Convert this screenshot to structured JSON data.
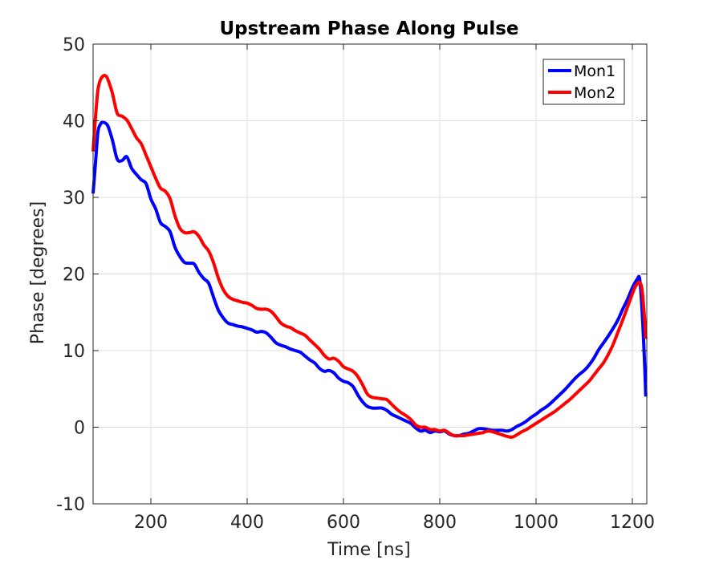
{
  "chart_data": {
    "type": "line",
    "title": "Upstream Phase Along Pulse",
    "xlabel": "Time [ns]",
    "ylabel": "Phase [degrees]",
    "xlim": [
      80,
      1230
    ],
    "ylim": [
      -10,
      50
    ],
    "xticks": [
      200,
      400,
      600,
      800,
      1000,
      1200
    ],
    "xtick_labels": [
      "200",
      "400",
      "600",
      "800",
      "1000",
      "1200"
    ],
    "yticks": [
      -10,
      0,
      10,
      20,
      30,
      40,
      50
    ],
    "ytick_labels": [
      "-10",
      "0",
      "10",
      "20",
      "30",
      "40",
      "50"
    ],
    "grid": true,
    "legend_position": "top-right",
    "series": [
      {
        "name": "Mon1",
        "color": "#0000ff",
        "x": [
          80,
          85,
          90,
          95,
          100,
          110,
          120,
          130,
          140,
          150,
          160,
          170,
          180,
          190,
          200,
          210,
          220,
          230,
          240,
          250,
          260,
          270,
          280,
          290,
          300,
          310,
          320,
          330,
          340,
          350,
          360,
          370,
          380,
          390,
          400,
          410,
          420,
          430,
          440,
          450,
          460,
          470,
          480,
          490,
          500,
          510,
          520,
          530,
          540,
          550,
          560,
          570,
          580,
          590,
          600,
          610,
          620,
          630,
          640,
          650,
          660,
          670,
          680,
          690,
          700,
          710,
          720,
          730,
          740,
          750,
          760,
          770,
          780,
          790,
          800,
          810,
          820,
          830,
          840,
          850,
          860,
          870,
          880,
          890,
          900,
          910,
          920,
          930,
          940,
          950,
          960,
          970,
          980,
          990,
          1000,
          1010,
          1020,
          1030,
          1040,
          1050,
          1060,
          1070,
          1080,
          1090,
          1100,
          1110,
          1120,
          1130,
          1140,
          1150,
          1160,
          1170,
          1180,
          1190,
          1200,
          1205,
          1210,
          1215,
          1220,
          1225,
          1228
        ],
        "y": [
          30.5,
          34.5,
          38.5,
          39.5,
          39.8,
          39.4,
          37.5,
          35.0,
          34.8,
          35.3,
          33.8,
          33.0,
          32.3,
          31.8,
          29.8,
          28.5,
          26.7,
          26.2,
          25.5,
          23.5,
          22.3,
          21.5,
          21.4,
          21.3,
          20.2,
          19.4,
          18.8,
          17.0,
          15.3,
          14.3,
          13.6,
          13.4,
          13.2,
          13.1,
          12.9,
          12.7,
          12.4,
          12.5,
          12.3,
          11.7,
          11.0,
          10.7,
          10.5,
          10.2,
          10.0,
          9.8,
          9.3,
          8.8,
          8.4,
          7.7,
          7.3,
          7.4,
          7.1,
          6.4,
          6.0,
          5.8,
          5.3,
          4.2,
          3.3,
          2.7,
          2.5,
          2.5,
          2.5,
          2.2,
          1.7,
          1.4,
          1.1,
          0.8,
          0.5,
          -0.1,
          -0.5,
          -0.4,
          -0.7,
          -0.5,
          -0.6,
          -0.5,
          -0.9,
          -1.1,
          -1.1,
          -0.9,
          -0.8,
          -0.5,
          -0.2,
          -0.2,
          -0.3,
          -0.4,
          -0.4,
          -0.4,
          -0.5,
          -0.3,
          0.1,
          0.4,
          0.8,
          1.3,
          1.7,
          2.2,
          2.6,
          3.1,
          3.7,
          4.3,
          4.9,
          5.6,
          6.3,
          6.9,
          7.4,
          8.1,
          9.0,
          10.1,
          11.0,
          11.9,
          12.9,
          14.0,
          15.4,
          16.7,
          18.2,
          18.8,
          19.3,
          19.4,
          15.5,
          9.0,
          4.0
        ]
      },
      {
        "name": "Mon2",
        "color": "#ff0000",
        "x": [
          80,
          85,
          90,
          95,
          100,
          105,
          110,
          120,
          130,
          140,
          150,
          160,
          170,
          180,
          190,
          200,
          210,
          220,
          230,
          240,
          250,
          260,
          270,
          280,
          290,
          300,
          310,
          320,
          330,
          340,
          350,
          360,
          370,
          380,
          390,
          400,
          410,
          420,
          430,
          440,
          450,
          460,
          470,
          480,
          490,
          500,
          510,
          520,
          530,
          540,
          550,
          560,
          570,
          580,
          590,
          600,
          610,
          620,
          630,
          640,
          650,
          660,
          670,
          680,
          690,
          700,
          710,
          720,
          730,
          740,
          750,
          760,
          770,
          780,
          790,
          800,
          810,
          820,
          830,
          840,
          850,
          860,
          870,
          880,
          890,
          900,
          910,
          920,
          930,
          940,
          950,
          960,
          970,
          980,
          990,
          1000,
          1010,
          1020,
          1030,
          1040,
          1050,
          1060,
          1070,
          1080,
          1090,
          1100,
          1110,
          1120,
          1130,
          1140,
          1150,
          1160,
          1170,
          1180,
          1190,
          1200,
          1205,
          1210,
          1215,
          1220,
          1225,
          1228
        ],
        "y": [
          36.0,
          40.5,
          44.0,
          45.3,
          45.8,
          45.9,
          45.5,
          43.6,
          41.0,
          40.6,
          40.1,
          39.0,
          37.8,
          37.0,
          35.5,
          34.0,
          32.5,
          31.2,
          30.8,
          29.8,
          27.6,
          26.0,
          25.4,
          25.4,
          25.5,
          24.9,
          23.8,
          23.0,
          21.5,
          19.5,
          18.0,
          17.1,
          16.7,
          16.5,
          16.3,
          16.2,
          15.9,
          15.5,
          15.4,
          15.4,
          15.1,
          14.4,
          13.6,
          13.2,
          13.0,
          12.6,
          12.3,
          12.0,
          11.4,
          10.8,
          10.2,
          9.4,
          8.9,
          9.0,
          8.6,
          7.9,
          7.6,
          7.3,
          6.6,
          5.5,
          4.3,
          3.9,
          3.8,
          3.7,
          3.6,
          3.0,
          2.4,
          1.9,
          1.5,
          1.0,
          0.3,
          0.0,
          0.0,
          -0.3,
          -0.3,
          -0.5,
          -0.4,
          -0.8,
          -1.1,
          -1.1,
          -1.1,
          -1.0,
          -0.9,
          -0.8,
          -0.7,
          -0.5,
          -0.6,
          -0.8,
          -1.0,
          -1.2,
          -1.3,
          -1.0,
          -0.6,
          -0.3,
          0.1,
          0.5,
          0.9,
          1.3,
          1.7,
          2.1,
          2.6,
          3.1,
          3.6,
          4.2,
          4.8,
          5.4,
          6.0,
          6.8,
          7.6,
          8.4,
          9.5,
          10.8,
          12.4,
          14.0,
          15.7,
          17.4,
          18.2,
          18.7,
          18.9,
          18.0,
          14.5,
          11.5
        ]
      }
    ]
  }
}
